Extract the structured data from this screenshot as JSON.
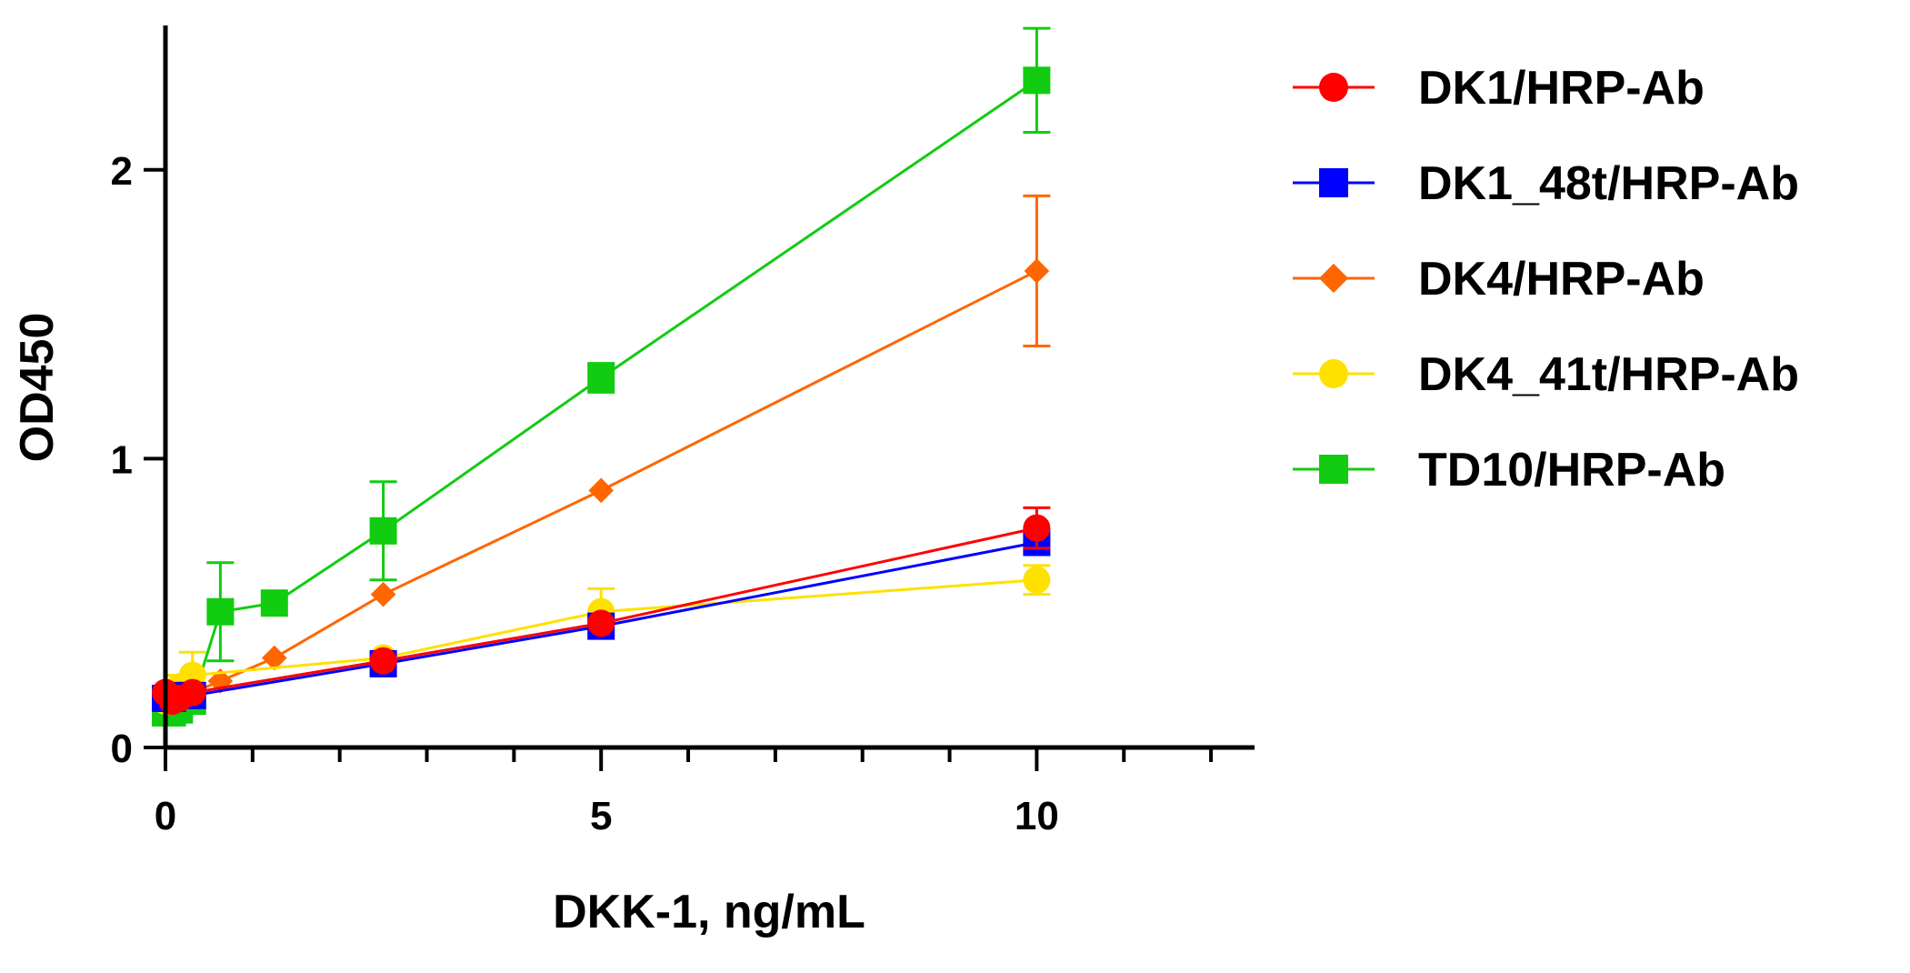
{
  "chart_data": {
    "type": "line",
    "title": "",
    "xlabel": "DKK-1, ng/mL",
    "ylabel": "OD450",
    "xlim": [
      0,
      12.5
    ],
    "ylim": [
      0,
      2.5
    ],
    "xticks_major": [
      0,
      5,
      10
    ],
    "xtick_labels": [
      "0",
      "5",
      "10"
    ],
    "xticks_minor": [
      1,
      2,
      3,
      4,
      6,
      7,
      8,
      9,
      11,
      12
    ],
    "yticks": [
      0,
      1,
      2
    ],
    "ytick_labels": [
      "0",
      "1",
      "2"
    ],
    "legend_position": "right",
    "series": [
      {
        "name": "DK1/HRP-Ab",
        "color": "#ff0000",
        "marker": "circle",
        "x": [
          0,
          0.08,
          0.16,
          0.31,
          2.5,
          5,
          10
        ],
        "y": [
          0.19,
          0.16,
          0.17,
          0.19,
          0.3,
          0.43,
          0.76
        ],
        "err": [
          0.02,
          0.02,
          0.02,
          0.02,
          0.02,
          0.02,
          0.07
        ]
      },
      {
        "name": "DK1_48t/HRP-Ab",
        "color": "#0000ff",
        "marker": "square",
        "x": [
          0,
          0.08,
          0.16,
          0.31,
          2.5,
          5,
          10
        ],
        "y": [
          0.17,
          0.17,
          0.18,
          0.18,
          0.29,
          0.42,
          0.71
        ],
        "err": [
          0.02,
          0.02,
          0.02,
          0.02,
          0.02,
          0.02,
          0.02
        ]
      },
      {
        "name": "DK4/HRP-Ab",
        "color": "#ff6600",
        "marker": "diamond",
        "x": [
          0,
          0.08,
          0.16,
          0.31,
          0.63,
          1.25,
          2.5,
          5,
          10
        ],
        "y": [
          0.15,
          0.16,
          0.17,
          0.19,
          0.23,
          0.31,
          0.53,
          0.89,
          1.65
        ],
        "err": [
          0.02,
          0.02,
          0.02,
          0.02,
          0.02,
          0.02,
          0.02,
          0.02,
          0.26
        ]
      },
      {
        "name": "DK4_41t/HRP-Ab",
        "color": "#ffe100",
        "marker": "circle",
        "x": [
          0,
          0.08,
          0.16,
          0.31,
          2.5,
          5,
          10
        ],
        "y": [
          0.16,
          0.19,
          0.21,
          0.25,
          0.31,
          0.47,
          0.58
        ],
        "err": [
          0.02,
          0.03,
          0.04,
          0.08,
          0.02,
          0.08,
          0.05
        ]
      },
      {
        "name": "TD10/HRP-Ab",
        "color": "#11cc11",
        "marker": "square",
        "x": [
          0,
          0.08,
          0.16,
          0.31,
          0.63,
          1.25,
          2.5,
          5,
          10
        ],
        "y": [
          0.12,
          0.12,
          0.13,
          0.16,
          0.47,
          0.5,
          0.75,
          1.28,
          2.31
        ],
        "err": [
          0.02,
          0.02,
          0.02,
          0.02,
          0.17,
          0.02,
          0.17,
          0.05,
          0.18
        ]
      }
    ]
  }
}
